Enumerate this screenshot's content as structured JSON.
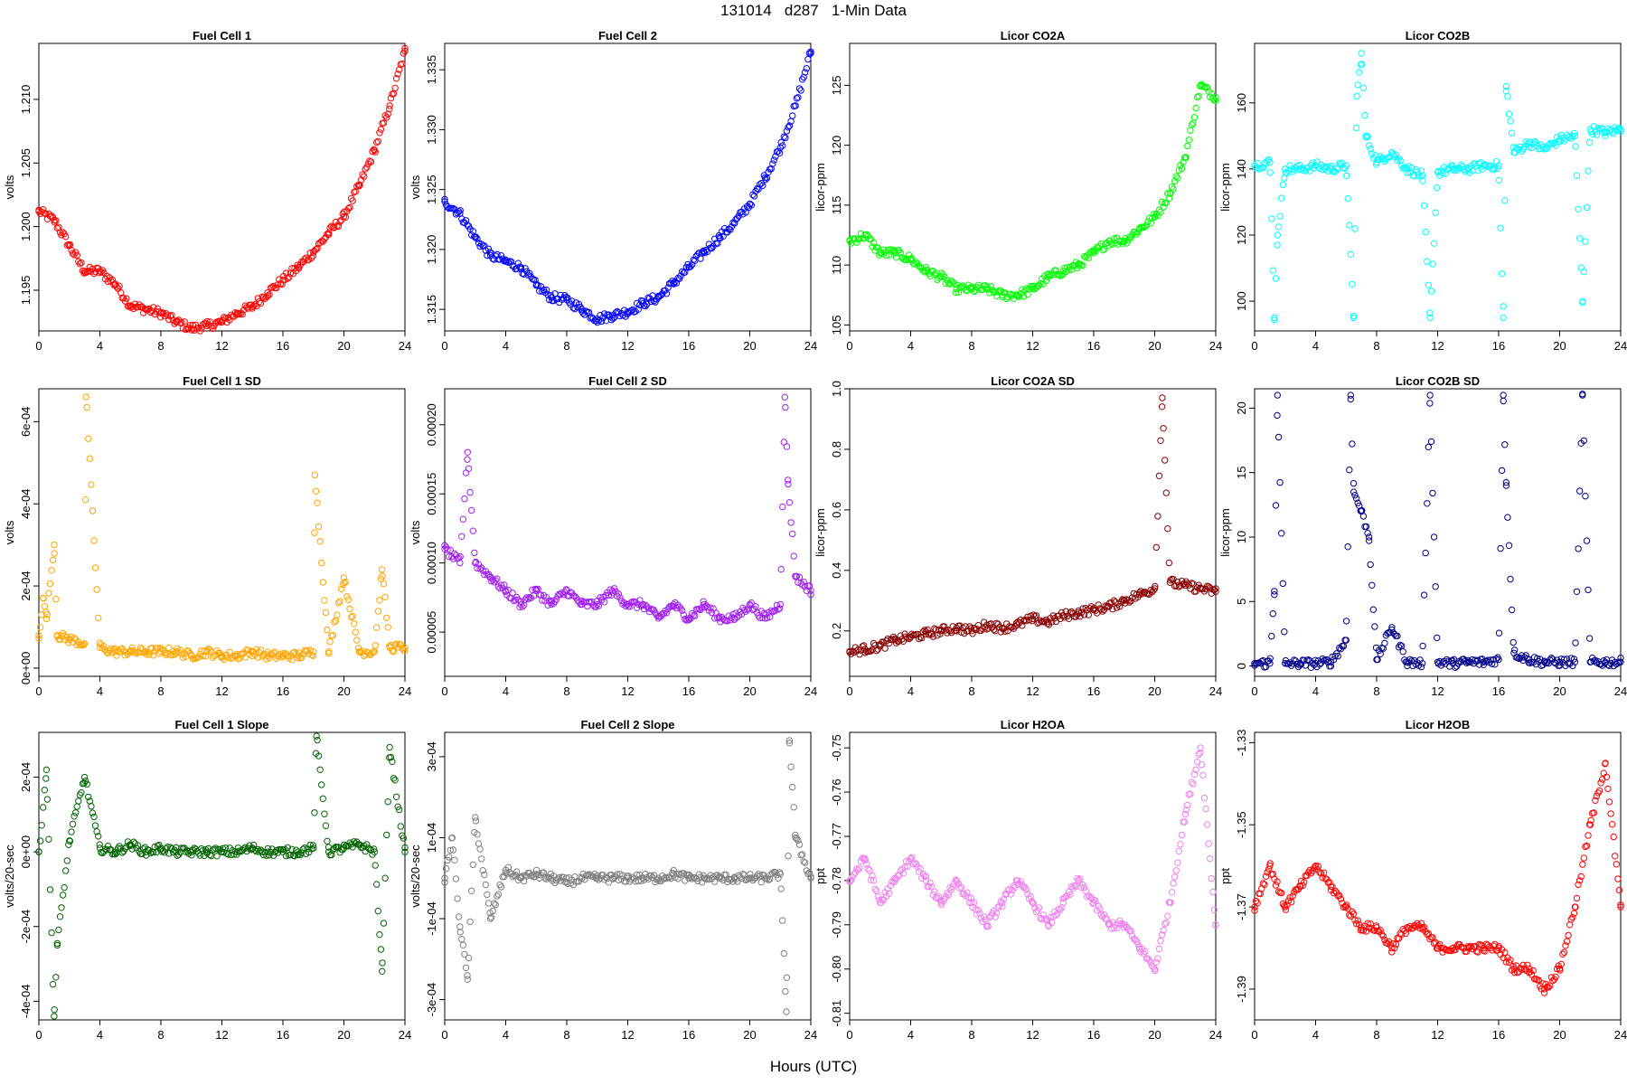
{
  "figure": {
    "title": "131014   d287   1-Min Data",
    "xlabel": "Hours (UTC)"
  },
  "chart_data": [
    {
      "type": "scatter",
      "title": "Fuel Cell 1",
      "ylabel": "volts",
      "color": "#ff0000",
      "xlim": [
        0,
        24
      ],
      "ylim": [
        1.1918,
        1.2144
      ],
      "xticks": [
        0,
        4,
        8,
        12,
        16,
        20,
        24
      ],
      "yticks": [
        1.195,
        1.2,
        1.205,
        1.21
      ],
      "yticklabels": [
        "1.195",
        "1.200",
        "1.205",
        "1.210"
      ],
      "x": [
        0,
        1,
        2,
        3,
        4,
        5,
        6,
        7,
        8,
        9,
        10,
        11,
        12,
        13,
        14,
        15,
        16,
        17,
        18,
        19,
        20,
        21,
        22,
        23,
        24
      ],
      "y": [
        1.2012,
        1.2005,
        1.1985,
        1.1965,
        1.1965,
        1.1955,
        1.1938,
        1.1935,
        1.1932,
        1.1925,
        1.192,
        1.1922,
        1.1925,
        1.1932,
        1.1937,
        1.1948,
        1.1958,
        1.1968,
        1.198,
        1.1995,
        1.2008,
        1.2032,
        1.206,
        1.2095,
        1.2138
      ]
    },
    {
      "type": "scatter",
      "title": "Fuel Cell 2",
      "ylabel": "volts",
      "color": "#0000ff",
      "xlim": [
        0,
        24
      ],
      "ylim": [
        1.3132,
        1.3372
      ],
      "xticks": [
        0,
        4,
        8,
        12,
        16,
        20,
        24
      ],
      "yticks": [
        1.315,
        1.32,
        1.325,
        1.33,
        1.335
      ],
      "yticklabels": [
        "1.315",
        "1.320",
        "1.325",
        "1.330",
        "1.335"
      ],
      "x": [
        0,
        1,
        2,
        3,
        4,
        5,
        6,
        7,
        8,
        9,
        10,
        11,
        12,
        13,
        14,
        15,
        16,
        17,
        18,
        19,
        20,
        21,
        22,
        23,
        24
      ],
      "y": [
        1.324,
        1.323,
        1.321,
        1.3195,
        1.319,
        1.3185,
        1.317,
        1.316,
        1.3158,
        1.315,
        1.3142,
        1.3145,
        1.3148,
        1.3155,
        1.316,
        1.3172,
        1.3185,
        1.3198,
        1.321,
        1.3222,
        1.3238,
        1.326,
        1.3285,
        1.332,
        1.3365
      ]
    },
    {
      "type": "scatter",
      "title": "Licor CO2A",
      "ylabel": "licor-ppm",
      "color": "#00ff00",
      "xlim": [
        0,
        24
      ],
      "ylim": [
        104.5,
        128.5
      ],
      "xticks": [
        0,
        4,
        8,
        12,
        16,
        20,
        24
      ],
      "yticks": [
        105,
        110,
        115,
        120,
        125
      ],
      "yticklabels": [
        "105",
        "110",
        "115",
        "120",
        "125"
      ],
      "x": [
        0,
        1,
        2,
        3,
        4,
        5,
        6,
        7,
        8,
        9,
        10,
        11,
        12,
        13,
        14,
        15,
        16,
        17,
        18,
        19,
        20,
        21,
        22,
        23,
        24
      ],
      "y": [
        112,
        112.5,
        111,
        111,
        110.5,
        109.5,
        109,
        108,
        108,
        108,
        107.5,
        107.5,
        108,
        109,
        109.5,
        110,
        111,
        112,
        112,
        113,
        114,
        116,
        119,
        125,
        124
      ]
    },
    {
      "type": "scatter",
      "title": "Licor CO2B",
      "ylabel": "licor-ppm",
      "color": "#00ffff",
      "xlim": [
        0,
        24
      ],
      "ylim": [
        91,
        178
      ],
      "xticks": [
        0,
        4,
        8,
        12,
        16,
        20,
        24
      ],
      "yticks": [
        100,
        120,
        140,
        160
      ],
      "yticklabels": [
        "100",
        "120",
        "140",
        "160"
      ],
      "x": [
        0,
        1,
        1.3,
        1.5,
        2,
        3,
        4,
        5,
        6,
        6.5,
        6.7,
        7,
        7.3,
        8,
        9,
        10,
        11,
        11.5,
        12,
        13,
        14,
        15,
        16,
        16.3,
        16.5,
        17,
        18,
        19,
        20,
        21,
        21.5,
        22,
        23,
        24
      ],
      "y": [
        141,
        142,
        95,
        120,
        140,
        140,
        141,
        140,
        141,
        95,
        162,
        175,
        150,
        142,
        145,
        140,
        138,
        95,
        139,
        140,
        140,
        141,
        141,
        95,
        165,
        145,
        148,
        146,
        149,
        150,
        100,
        152,
        151,
        152
      ]
    },
    {
      "type": "scatter",
      "title": "Fuel Cell 1 SD",
      "ylabel": "volts",
      "color": "#ffa500",
      "xlim": [
        0,
        24
      ],
      "ylim": [
        -2e-05,
        0.00068
      ],
      "xticks": [
        0,
        4,
        8,
        12,
        16,
        20,
        24
      ],
      "yticks": [
        0,
        0.0002,
        0.0004,
        0.0006
      ],
      "yticklabels": [
        "0e+00",
        "2e-04",
        "4e-04",
        "6e-04"
      ],
      "x": [
        0,
        0.3,
        0.5,
        1,
        1.2,
        2,
        3,
        3.1,
        4,
        5,
        6,
        7,
        8,
        9,
        10,
        11,
        12,
        13,
        14,
        15,
        16,
        17,
        18,
        18.1,
        19,
        20,
        21,
        22,
        22.5,
        23,
        24
      ],
      "y": [
        8e-05,
        0.00017,
        0.00012,
        0.0003,
        8e-05,
        7e-05,
        6e-05,
        0.00066,
        5e-05,
        4e-05,
        4e-05,
        4e-05,
        4e-05,
        4e-05,
        3e-05,
        4e-05,
        3e-05,
        3e-05,
        4e-05,
        3e-05,
        3e-05,
        3e-05,
        4e-05,
        0.00047,
        4e-05,
        0.00022,
        4e-05,
        4e-05,
        0.00024,
        5e-05,
        5e-05
      ]
    },
    {
      "type": "scatter",
      "title": "Fuel Cell 2 SD",
      "ylabel": "volts",
      "color": "#a020f0",
      "xlim": [
        0,
        24
      ],
      "ylim": [
        1.8e-05,
        0.000226
      ],
      "xticks": [
        0,
        4,
        8,
        12,
        16,
        20,
        24
      ],
      "yticks": [
        5e-05,
        0.0001,
        0.00015,
        0.0002
      ],
      "yticklabels": [
        "0.00005",
        "0.00010",
        "0.00015",
        "0.00020"
      ],
      "x": [
        0,
        1,
        1.5,
        2,
        3,
        4,
        5,
        6,
        7,
        8,
        9,
        10,
        11,
        12,
        13,
        14,
        15,
        16,
        17,
        18,
        19,
        20,
        21,
        22,
        22.3,
        22.5,
        23,
        24
      ],
      "y": [
        0.00011,
        0.0001,
        0.00018,
        0.0001,
        9e-05,
        8e-05,
        7e-05,
        8e-05,
        7e-05,
        8e-05,
        7e-05,
        7e-05,
        8e-05,
        7e-05,
        7e-05,
        6e-05,
        7e-05,
        6e-05,
        7e-05,
        6e-05,
        6e-05,
        7e-05,
        6e-05,
        7e-05,
        0.00022,
        0.00016,
        9e-05,
        8e-05
      ]
    },
    {
      "type": "scatter",
      "title": "Licor CO2A SD",
      "ylabel": "licor-ppm",
      "color": "#8b0000",
      "xlim": [
        0,
        24
      ],
      "ylim": [
        0.05,
        1.0
      ],
      "xticks": [
        0,
        4,
        8,
        12,
        16,
        20,
        24
      ],
      "yticks": [
        0.2,
        0.4,
        0.6,
        0.8,
        1.0
      ],
      "yticklabels": [
        "0.2",
        "0.4",
        "0.6",
        "0.8",
        "1.0"
      ],
      "x": [
        0,
        1,
        2,
        3,
        4,
        5,
        6,
        7,
        8,
        9,
        10,
        11,
        12,
        13,
        14,
        15,
        16,
        17,
        18,
        19,
        20,
        20.5,
        21,
        22,
        23,
        24
      ],
      "y": [
        0.13,
        0.14,
        0.15,
        0.17,
        0.18,
        0.19,
        0.2,
        0.21,
        0.2,
        0.22,
        0.21,
        0.22,
        0.24,
        0.23,
        0.25,
        0.26,
        0.27,
        0.28,
        0.3,
        0.32,
        0.34,
        0.97,
        0.36,
        0.35,
        0.34,
        0.33
      ]
    },
    {
      "type": "scatter",
      "title": "Licor CO2B SD",
      "ylabel": "licor-ppm",
      "color": "#00008b",
      "xlim": [
        0,
        24
      ],
      "ylim": [
        -0.8,
        21.5
      ],
      "xticks": [
        0,
        4,
        8,
        12,
        16,
        20,
        24
      ],
      "yticks": [
        0,
        5,
        10,
        15,
        20
      ],
      "yticklabels": [
        "0",
        "5",
        "10",
        "15",
        "20"
      ],
      "x": [
        0,
        1,
        1.3,
        1.5,
        2,
        3,
        4,
        5,
        6,
        6.3,
        6.5,
        7,
        7.5,
        8,
        9,
        10,
        11,
        11.5,
        12,
        13,
        14,
        15,
        16,
        16.3,
        16.5,
        17,
        18,
        19,
        20,
        21,
        21.5,
        22,
        23,
        24
      ],
      "y": [
        0.2,
        0.2,
        5.8,
        21,
        0.2,
        0.2,
        0.2,
        0.3,
        2,
        21,
        13.5,
        12,
        10,
        0.5,
        3,
        0.3,
        0.2,
        21,
        0.3,
        0.2,
        0.3,
        0.3,
        0.5,
        21,
        14,
        1,
        0.5,
        0.3,
        0.3,
        0.3,
        21,
        0.3,
        0.3,
        0.3
      ]
    },
    {
      "type": "scatter",
      "title": "Fuel Cell 1 Slope",
      "ylabel": "volts/20-sec",
      "color": "#006400",
      "xlim": [
        0,
        24
      ],
      "ylim": [
        -0.00045,
        0.00032
      ],
      "xticks": [
        0,
        4,
        8,
        12,
        16,
        20,
        24
      ],
      "yticks": [
        -0.0004,
        -0.0002,
        0,
        0.0002
      ],
      "yticklabels": [
        "-4e-04",
        "-2e-04",
        "0e+00",
        "2e-04"
      ],
      "x": [
        0,
        0.5,
        1,
        1.2,
        2,
        3,
        4,
        5,
        6,
        7,
        8,
        9,
        10,
        11,
        12,
        13,
        14,
        15,
        16,
        17,
        18,
        18.2,
        19,
        20,
        21,
        22,
        22.5,
        23,
        24
      ],
      "y": [
        0,
        0.00022,
        -0.00044,
        -0.00025,
        3e-05,
        0.0002,
        1e-05,
        0,
        2e-05,
        0,
        1e-05,
        0,
        0,
        0,
        0,
        0,
        1e-05,
        0,
        0,
        0,
        1e-05,
        0.00031,
        0,
        1e-05,
        2e-05,
        0,
        -0.00032,
        0.00028,
        0
      ]
    },
    {
      "type": "scatter",
      "title": "Fuel Cell 2 Slope",
      "ylabel": "volts/20-sec",
      "color": "#808080",
      "xlim": [
        0,
        24
      ],
      "ylim": [
        -0.00035,
        0.00036
      ],
      "xticks": [
        0,
        4,
        8,
        12,
        16,
        20,
        24
      ],
      "yticks": [
        -0.0003,
        -0.0001,
        0.0001,
        0.0003
      ],
      "yticklabels": [
        "-3e-04",
        "-1e-04",
        "1e-04",
        "3e-04"
      ],
      "x": [
        0,
        0.5,
        1,
        1.5,
        2,
        3,
        4,
        5,
        6,
        7,
        8,
        9,
        10,
        11,
        12,
        13,
        14,
        15,
        16,
        17,
        18,
        19,
        20,
        21,
        22,
        22.4,
        22.6,
        23,
        24
      ],
      "y": [
        0,
        0.0001,
        -0.00012,
        -0.00025,
        0.00015,
        -0.0001,
        2e-05,
        0,
        1e-05,
        0,
        -1e-05,
        0,
        0,
        0,
        0,
        0,
        0,
        1e-05,
        0,
        0,
        0,
        0,
        0,
        0,
        1e-05,
        -0.00033,
        0.00034,
        0.0001,
        0
      ]
    },
    {
      "type": "scatter",
      "title": "Licor H2OA",
      "ylabel": "ppt",
      "color": "#ee82ee",
      "xlim": [
        0,
        24
      ],
      "ylim": [
        -0.8115,
        -0.7465
      ],
      "xticks": [
        0,
        4,
        8,
        12,
        16,
        20,
        24
      ],
      "yticks": [
        -0.81,
        -0.8,
        -0.79,
        -0.78,
        -0.77,
        -0.76,
        -0.75
      ],
      "yticklabels": [
        "-0.81",
        "-0.80",
        "-0.79",
        "-0.78",
        "-0.77",
        "-0.76",
        "-0.75"
      ],
      "x": [
        0,
        1,
        2,
        3,
        4,
        5,
        6,
        7,
        8,
        9,
        10,
        11,
        12,
        13,
        14,
        15,
        16,
        17,
        18,
        19,
        20,
        21,
        22,
        23,
        24
      ],
      "y": [
        -0.78,
        -0.775,
        -0.785,
        -0.78,
        -0.775,
        -0.78,
        -0.785,
        -0.78,
        -0.785,
        -0.79,
        -0.785,
        -0.78,
        -0.785,
        -0.79,
        -0.785,
        -0.78,
        -0.785,
        -0.79,
        -0.79,
        -0.795,
        -0.8,
        -0.785,
        -0.765,
        -0.75,
        -0.79
      ]
    },
    {
      "type": "scatter",
      "title": "Licor H2OB",
      "ylabel": "ppt",
      "color": "#ff0000",
      "xlim": [
        0,
        24
      ],
      "ylim": [
        -1.3975,
        -1.3275
      ],
      "xticks": [
        0,
        4,
        8,
        12,
        16,
        20,
        24
      ],
      "yticks": [
        -1.39,
        -1.37,
        -1.35,
        -1.33
      ],
      "yticklabels": [
        "-1.39",
        "-1.37",
        "-1.35",
        "-1.33"
      ],
      "x": [
        0,
        1,
        2,
        3,
        4,
        5,
        6,
        7,
        8,
        9,
        10,
        11,
        12,
        13,
        14,
        15,
        16,
        17,
        18,
        19,
        20,
        21,
        22,
        23,
        24
      ],
      "y": [
        -1.37,
        -1.36,
        -1.37,
        -1.365,
        -1.36,
        -1.365,
        -1.37,
        -1.375,
        -1.375,
        -1.38,
        -1.375,
        -1.375,
        -1.38,
        -1.38,
        -1.38,
        -1.38,
        -1.38,
        -1.385,
        -1.385,
        -1.39,
        -1.385,
        -1.37,
        -1.35,
        -1.335,
        -1.37
      ]
    }
  ]
}
